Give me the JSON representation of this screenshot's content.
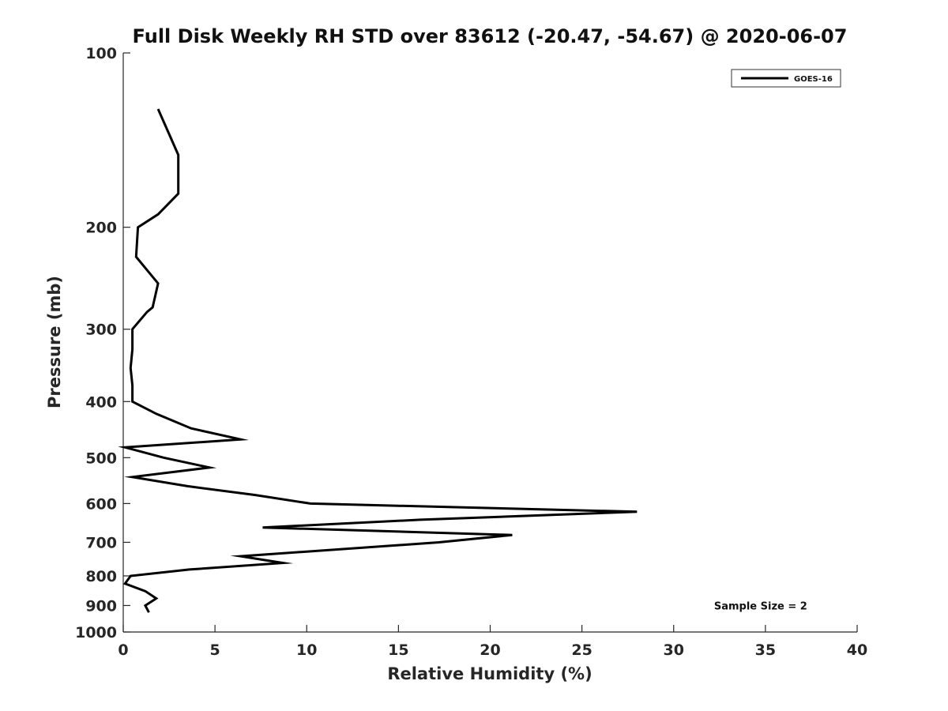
{
  "chart_data": {
    "type": "line",
    "title": "Full Disk Weekly RH STD over 83612 (-20.47, -54.67) @ 2020-06-07",
    "xlabel": "Relative Humidity (%)",
    "ylabel": "Pressure (mb)",
    "xlim": [
      0,
      40
    ],
    "ylim": [
      100,
      1000
    ],
    "yscale": "log",
    "y_reversed": true,
    "grid": false,
    "x_ticks": [
      0,
      5,
      10,
      15,
      20,
      25,
      30,
      35,
      40
    ],
    "x_tick_labels": [
      "0",
      "5",
      "10",
      "15",
      "20",
      "25",
      "30",
      "35",
      "40"
    ],
    "y_ticks": [
      100,
      200,
      300,
      400,
      500,
      600,
      700,
      800,
      900,
      1000
    ],
    "y_tick_labels": [
      "100",
      "200",
      "300",
      "400",
      "500",
      "600",
      "700",
      "800",
      "900",
      "1000"
    ],
    "legend_position": "top-right",
    "series": [
      {
        "name": "GOES-16",
        "color": "#000000",
        "points": [
          {
            "rh": 1.9,
            "p": 125
          },
          {
            "rh": 3.0,
            "p": 150
          },
          {
            "rh": 3.0,
            "p": 175
          },
          {
            "rh": 1.9,
            "p": 190
          },
          {
            "rh": 0.8,
            "p": 200
          },
          {
            "rh": 0.7,
            "p": 225
          },
          {
            "rh": 1.9,
            "p": 250
          },
          {
            "rh": 1.6,
            "p": 275
          },
          {
            "rh": 1.3,
            "p": 280
          },
          {
            "rh": 0.5,
            "p": 300
          },
          {
            "rh": 0.5,
            "p": 325
          },
          {
            "rh": 0.4,
            "p": 350
          },
          {
            "rh": 0.5,
            "p": 375
          },
          {
            "rh": 0.5,
            "p": 400
          },
          {
            "rh": 1.8,
            "p": 420
          },
          {
            "rh": 3.7,
            "p": 445
          },
          {
            "rh": 6.4,
            "p": 465
          },
          {
            "rh": 0.1,
            "p": 480
          },
          {
            "rh": 2.2,
            "p": 500
          },
          {
            "rh": 4.7,
            "p": 520
          },
          {
            "rh": 0.5,
            "p": 540
          },
          {
            "rh": 3.5,
            "p": 560
          },
          {
            "rh": 7.2,
            "p": 580
          },
          {
            "rh": 10.2,
            "p": 600
          },
          {
            "rh": 28.0,
            "p": 620
          },
          {
            "rh": 16.2,
            "p": 640
          },
          {
            "rh": 7.6,
            "p": 660
          },
          {
            "rh": 21.2,
            "p": 680
          },
          {
            "rh": 17.2,
            "p": 700
          },
          {
            "rh": 6.4,
            "p": 740
          },
          {
            "rh": 8.7,
            "p": 760
          },
          {
            "rh": 3.6,
            "p": 780
          },
          {
            "rh": 0.4,
            "p": 800
          },
          {
            "rh": 0.1,
            "p": 825
          },
          {
            "rh": 1.2,
            "p": 850
          },
          {
            "rh": 1.8,
            "p": 875
          },
          {
            "rh": 1.2,
            "p": 900
          },
          {
            "rh": 1.4,
            "p": 925
          }
        ]
      }
    ],
    "annotations": [
      {
        "text": "Sample Size = 2",
        "rh": 32.2,
        "p": 900
      }
    ]
  }
}
